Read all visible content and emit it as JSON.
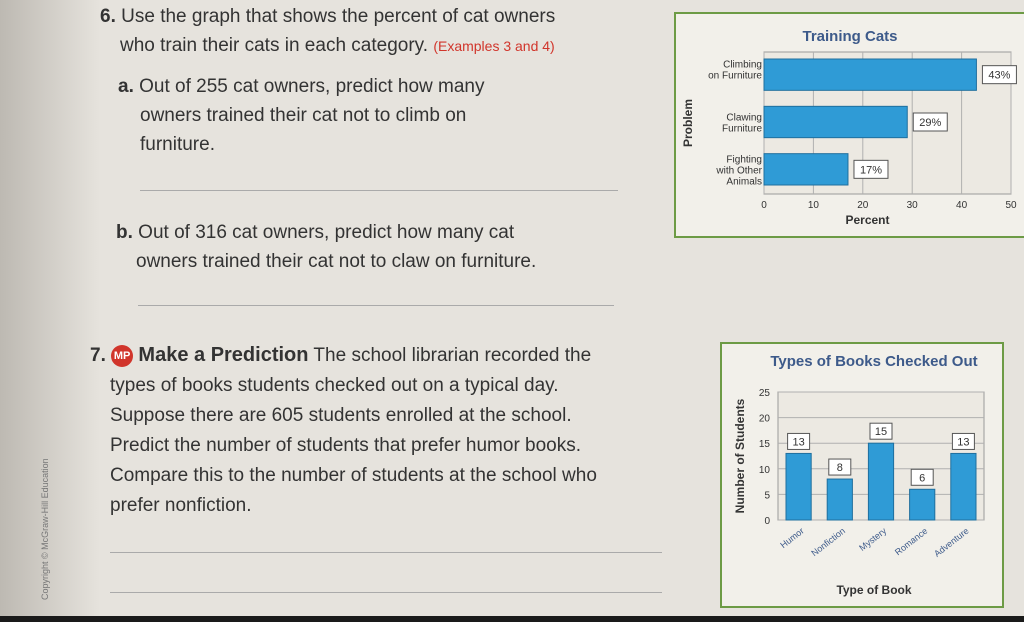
{
  "problem6": {
    "number": "6.",
    "text_line1": "Use the graph that shows the percent of cat owners",
    "text_line2": "who train their cats in each category.",
    "examples": "(Examples 3 and 4)",
    "a_label": "a.",
    "a_line1": "Out of 255 cat owners, predict how many",
    "a_line2": "owners trained their cat not to climb on",
    "a_line3": "furniture.",
    "b_label": "b.",
    "b_line1": "Out of 316 cat owners, predict how many cat",
    "b_line2": "owners trained their cat not to claw on furniture."
  },
  "problem7": {
    "number": "7.",
    "badge": "MP",
    "title": "Make a Prediction",
    "line1": "The school librarian recorded the",
    "line2": "types of books students checked out on a typical day.",
    "line3": "Suppose there are 605 students enrolled at the school.",
    "line4": "Predict the number of students that prefer humor books.",
    "line5": "Compare this to the number of students at the school who",
    "line6": "prefer nonfiction."
  },
  "copyright": "Copyright © McGraw-Hill Education",
  "chart_data": [
    {
      "type": "bar",
      "orientation": "horizontal",
      "title": "Training Cats",
      "xlabel": "Percent",
      "ylabel": "Problem",
      "categories": [
        "Climbing on Furniture",
        "Clawing Furniture",
        "Fighting with Other Animals"
      ],
      "values": [
        43,
        29,
        17
      ],
      "value_labels": [
        "43%",
        "29%",
        "17%"
      ],
      "xlim": [
        0,
        50
      ],
      "xticks": [
        "0",
        "10",
        "20",
        "30",
        "40",
        "50"
      ],
      "bar_color": "#2f9bd6",
      "grid": true
    },
    {
      "type": "bar",
      "orientation": "vertical",
      "title": "Types of Books Checked Out",
      "xlabel": "Type of Book",
      "ylabel": "Number of Students",
      "categories": [
        "Humor",
        "Nonfiction",
        "Mystery",
        "Romance",
        "Adventure"
      ],
      "values": [
        13,
        8,
        15,
        6,
        13
      ],
      "value_labels": [
        "13",
        "8",
        "15",
        "6",
        "13"
      ],
      "ylim": [
        0,
        25
      ],
      "yticks": [
        "0",
        "5",
        "10",
        "15",
        "20",
        "25"
      ],
      "bar_color": "#2f9bd6",
      "grid": true
    }
  ]
}
